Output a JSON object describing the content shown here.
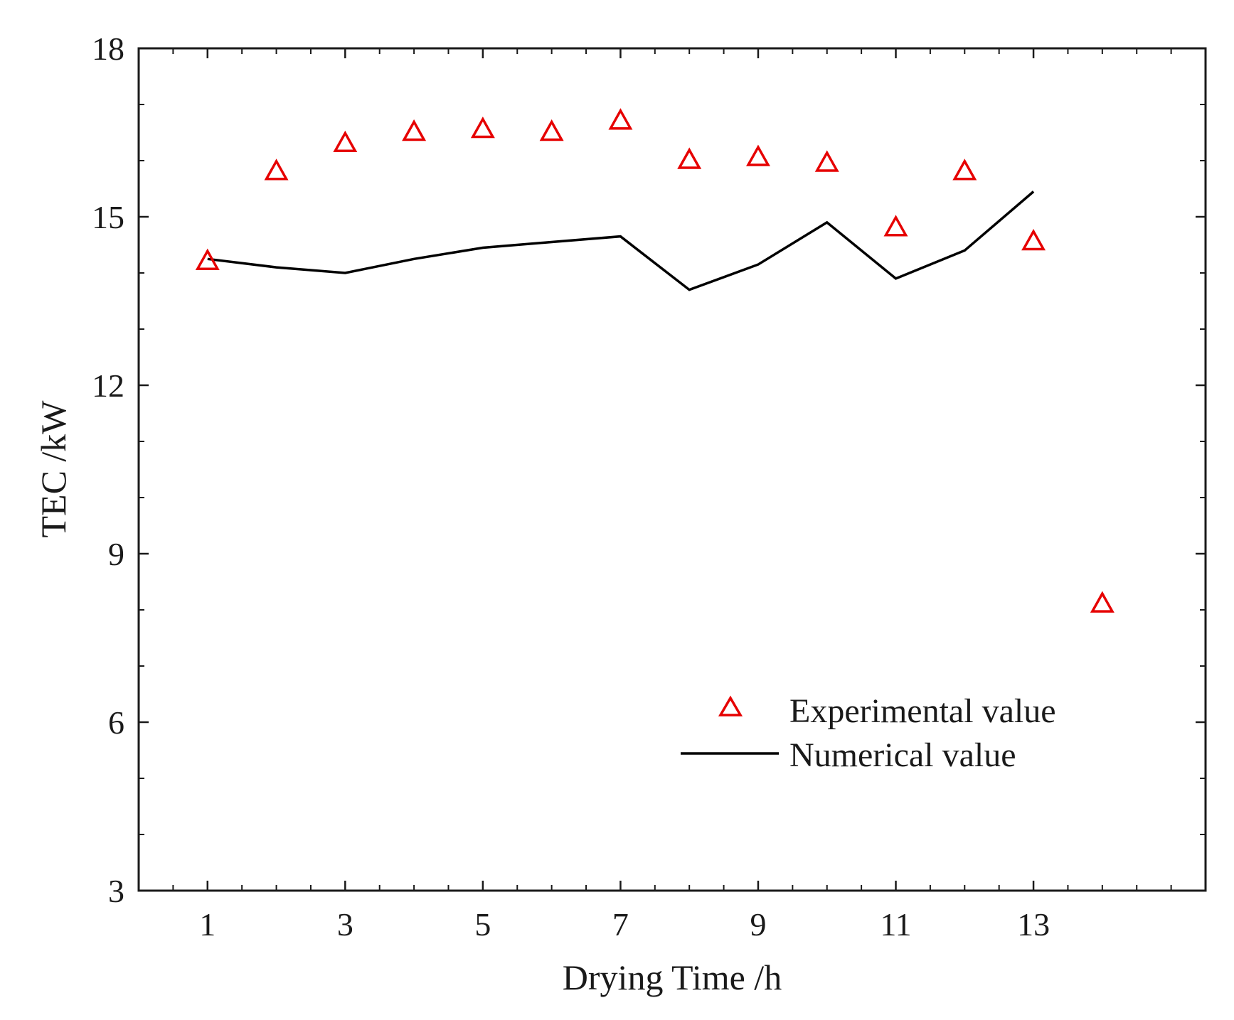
{
  "chart_data": {
    "type": "line",
    "xlabel": "Drying Time /h",
    "ylabel": "TEC /kW",
    "xlim": [
      0,
      15.5
    ],
    "ylim": [
      3,
      18
    ],
    "x_major_ticks": [
      1,
      3,
      5,
      7,
      9,
      11,
      13
    ],
    "x_tick_labels": [
      "1",
      "3",
      "5",
      "7",
      "9",
      "11",
      "13"
    ],
    "y_major_ticks": [
      3,
      6,
      9,
      12,
      15,
      18
    ],
    "y_tick_labels": [
      "3",
      "6",
      "9",
      "12",
      "15",
      "18"
    ],
    "series": [
      {
        "name": "Experimental value",
        "kind": "scatter",
        "marker": "triangle-open",
        "color": "#e60000",
        "x": [
          1,
          2,
          3,
          4,
          5,
          6,
          7,
          8,
          9,
          10,
          11,
          12,
          13,
          14
        ],
        "y": [
          14.2,
          15.8,
          16.3,
          16.5,
          16.55,
          16.5,
          16.7,
          16.0,
          16.05,
          15.95,
          14.8,
          15.8,
          14.55,
          8.1
        ]
      },
      {
        "name": "Numerical value",
        "kind": "line",
        "color": "#000000",
        "x": [
          1,
          2,
          3,
          4,
          5,
          6,
          7,
          8,
          9,
          10,
          11,
          12,
          13
        ],
        "y": [
          14.25,
          14.1,
          14.0,
          14.25,
          14.45,
          14.55,
          14.65,
          13.7,
          14.15,
          14.9,
          13.9,
          14.4,
          15.45
        ]
      }
    ],
    "legend": {
      "placement": "lower-right",
      "entries": [
        "Experimental value",
        "Numerical value"
      ]
    }
  }
}
